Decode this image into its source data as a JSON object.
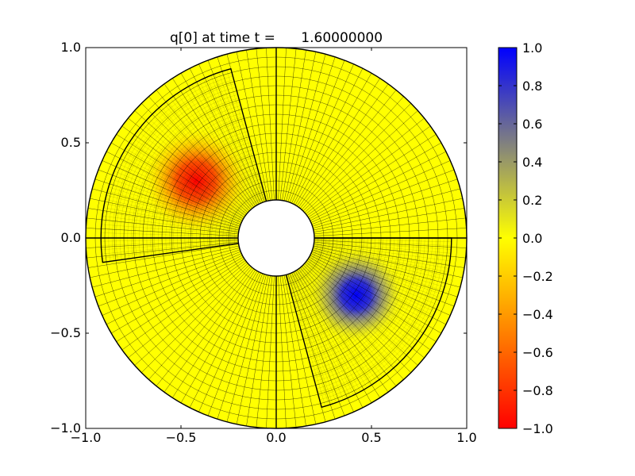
{
  "chart_data": {
    "type": "heatmap",
    "title": "q[0] at time t =      1.60000000",
    "xlabel": "",
    "ylabel": "",
    "xlim": [
      -1.0,
      1.0
    ],
    "ylim": [
      -1.0,
      1.0
    ],
    "x_ticks": [
      -1.0,
      -0.5,
      0.0,
      0.5,
      1.0
    ],
    "y_ticks": [
      -1.0,
      -0.5,
      0.0,
      0.5,
      1.0
    ],
    "x_tick_labels": [
      "−1.0",
      "−0.5",
      "0.0",
      "0.5",
      "1.0"
    ],
    "y_tick_labels": [
      "−1.0",
      "−0.5",
      "0.0",
      "0.5",
      "1.0"
    ],
    "grid": false,
    "domain": {
      "shape": "annulus",
      "center": [
        0.0,
        0.0
      ],
      "inner_radius": 0.2,
      "outer_radius": 1.0
    },
    "features": [
      {
        "kind": "negative-blob",
        "center": [
          -0.42,
          0.3
        ],
        "peak_value": -1.0,
        "width": 0.18
      },
      {
        "kind": "positive-blob",
        "center": [
          0.42,
          -0.3
        ],
        "peak_value": 1.0,
        "width": 0.16
      }
    ],
    "refined_patches": [
      {
        "r_range": [
          0.2,
          0.92
        ],
        "theta_range_deg": [
          105,
          188
        ]
      },
      {
        "r_range": [
          0.2,
          0.92
        ],
        "theta_range_deg": [
          285,
          360
        ]
      }
    ],
    "colorbar": {
      "range": [
        -1.0,
        1.0
      ],
      "ticks": [
        1.0,
        0.8,
        0.6,
        0.4,
        0.2,
        0.0,
        -0.2,
        -0.4,
        -0.6,
        -0.8,
        -1.0
      ],
      "tick_labels": [
        "1.0",
        "0.8",
        "0.6",
        "0.4",
        "0.2",
        "0.0",
        "−0.2",
        "−0.4",
        "−0.6",
        "−0.8",
        "−1.0"
      ],
      "colors": {
        "max": "#0000ff",
        "mid_upper": "#808080",
        "zero": "#ffff00",
        "mid_lower": "#ff8000",
        "min": "#ff0000"
      }
    }
  }
}
